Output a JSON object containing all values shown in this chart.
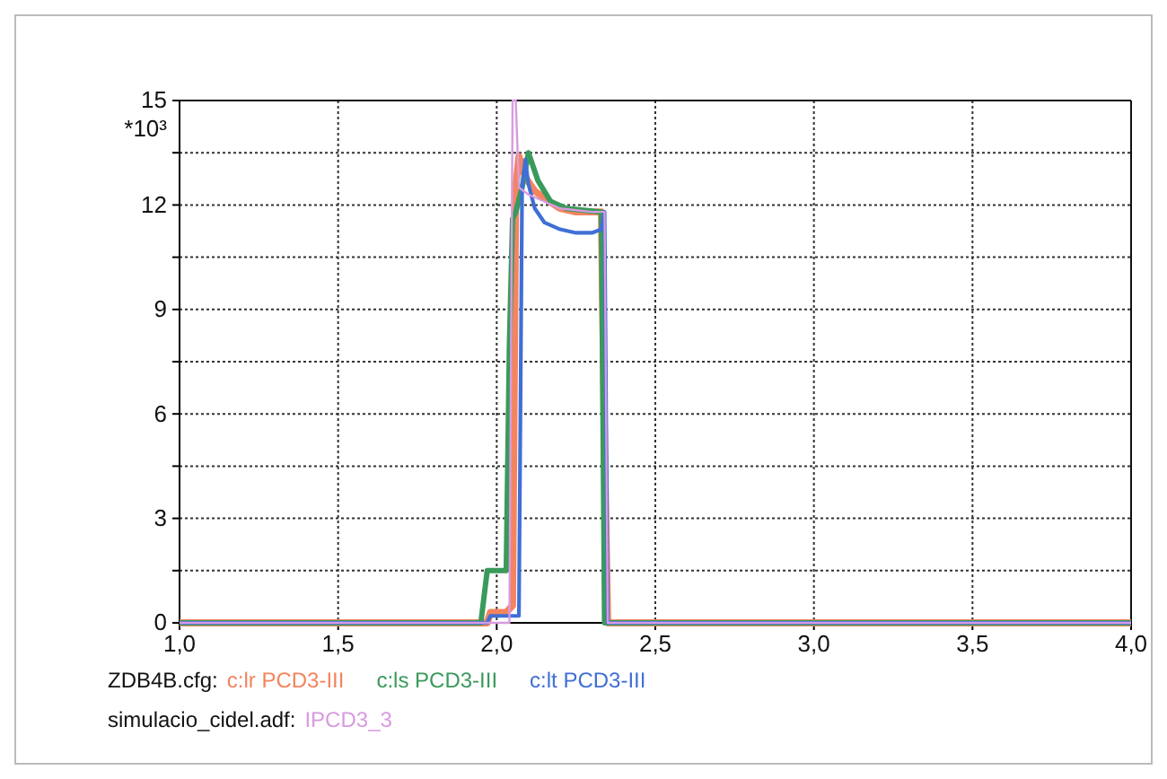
{
  "chart_data": {
    "type": "line",
    "xlim": [
      1.0,
      4.0
    ],
    "xticks": [
      {
        "value": 1.0,
        "label": "1,0"
      },
      {
        "value": 1.5,
        "label": "1,5"
      },
      {
        "value": 2.0,
        "label": "2,0"
      },
      {
        "value": 2.5,
        "label": "2,5"
      },
      {
        "value": 3.0,
        "label": "3,0"
      },
      {
        "value": 3.5,
        "label": "3,5"
      },
      {
        "value": 4.0,
        "label": "4,0"
      }
    ],
    "ylim": [
      0,
      15
    ],
    "yticks": [
      0,
      {
        "value": 1.5,
        "label": null
      },
      3,
      {
        "value": 4.5,
        "label": null
      },
      6,
      {
        "value": 7.5,
        "label": null
      },
      9,
      {
        "value": 10.5,
        "label": null
      },
      12,
      {
        "value": 13.5,
        "label": null
      },
      15
    ],
    "ylabel": "*10³",
    "grid": true,
    "legend": "bottom left",
    "marker": "none",
    "line_style": "solid",
    "annotations": [
      "ZDB4B.cfg:",
      "simulacio_cidel.adf:"
    ],
    "series": [
      {
        "name": "c:lr PCD3-III",
        "color": "#f4845f",
        "x": [
          1.0,
          1.97,
          1.98,
          2.03,
          2.05,
          2.06,
          2.07,
          2.09,
          2.12,
          2.15,
          2.2,
          2.25,
          2.33,
          2.34,
          2.35,
          4.0
        ],
        "values": [
          0,
          0,
          0.3,
          0.3,
          0.5,
          12.5,
          13.4,
          12.8,
          12.4,
          12.2,
          11.9,
          11.8,
          11.8,
          5,
          0,
          0
        ]
      },
      {
        "name": "c:ls PCD3-III",
        "color": "#3a9a5b",
        "x": [
          1.0,
          1.95,
          1.97,
          2.03,
          2.04,
          2.05,
          2.06,
          2.08,
          2.1,
          2.13,
          2.17,
          2.22,
          2.33,
          2.34,
          4.0
        ],
        "values": [
          0,
          0,
          1.5,
          1.5,
          8,
          11.6,
          11.8,
          12.5,
          13.5,
          12.7,
          12.1,
          11.9,
          11.8,
          0,
          0
        ]
      },
      {
        "name": "c:lt PCD3-III",
        "color": "#3f6fd6",
        "x": [
          1.0,
          1.97,
          1.98,
          2.07,
          2.08,
          2.09,
          2.1,
          2.12,
          2.15,
          2.2,
          2.25,
          2.3,
          2.33,
          2.34,
          2.35,
          4.0
        ],
        "values": [
          0,
          0,
          0.2,
          0.2,
          12.5,
          13.3,
          12.6,
          11.9,
          11.5,
          11.3,
          11.2,
          11.2,
          11.3,
          11.8,
          0,
          0
        ]
      },
      {
        "name": "IPCD3_3",
        "color": "#d89be0",
        "x": [
          1.0,
          2.04,
          2.05,
          2.06,
          2.07,
          2.1,
          2.15,
          2.2,
          2.3,
          2.34,
          2.35,
          4.0
        ],
        "values": [
          0,
          0,
          15,
          15,
          12.5,
          12.3,
          12.1,
          11.9,
          11.8,
          11.8,
          0,
          0
        ]
      }
    ]
  }
}
